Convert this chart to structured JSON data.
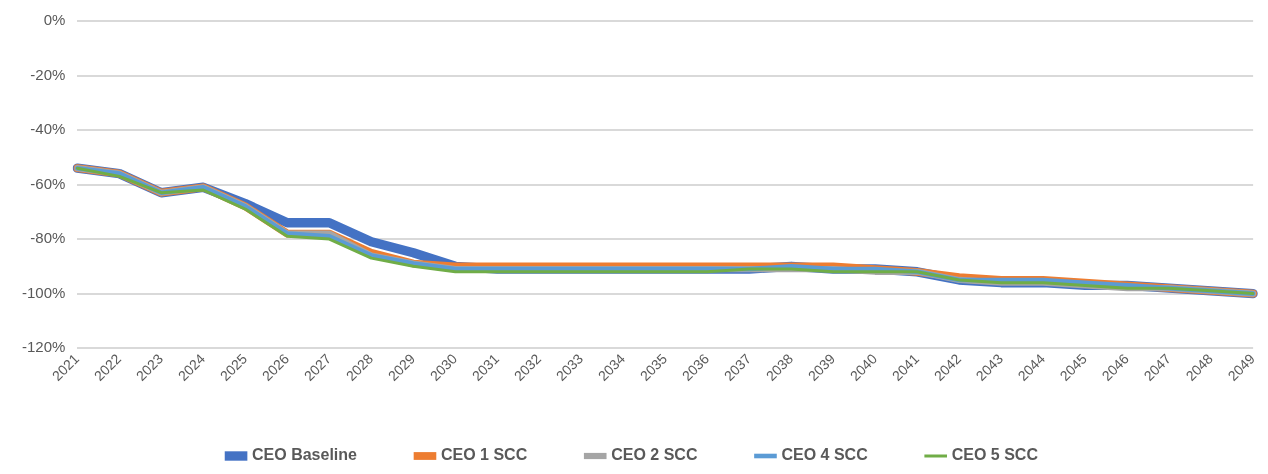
{
  "chart_data": {
    "type": "line",
    "categories": [
      "2021",
      "2022",
      "2023",
      "2024",
      "2025",
      "2026",
      "2027",
      "2028",
      "2029",
      "2030",
      "2031",
      "2032",
      "2033",
      "2034",
      "2035",
      "2036",
      "2037",
      "2038",
      "2039",
      "2040",
      "2041",
      "2042",
      "2043",
      "2044",
      "2045",
      "2046",
      "2047",
      "2048",
      "2049"
    ],
    "ylim": [
      -120,
      0
    ],
    "yticks": [
      {
        "value": -120,
        "label": "-120%"
      },
      {
        "value": -100,
        "label": "-100%"
      },
      {
        "value": -80,
        "label": "-80%"
      },
      {
        "value": -60,
        "label": "-60%"
      },
      {
        "value": -40,
        "label": "-40%"
      },
      {
        "value": -20,
        "label": "-20%"
      },
      {
        "value": 0,
        "label": "0%"
      }
    ],
    "grid": "y",
    "legend": "bottom",
    "marker": "none",
    "line_style": "solid",
    "series": [
      {
        "name": "CEO Baseline",
        "color": "#4472c4",
        "values": [
          -54,
          -56,
          -63,
          -61,
          -67,
          -74,
          -74,
          -81,
          -85,
          -90,
          -91,
          -91,
          -91,
          -91,
          -91,
          -91,
          -91,
          -90,
          -91,
          -91,
          -92,
          -95,
          -96,
          -96,
          -97,
          -97,
          -98,
          -99,
          -100
        ]
      },
      {
        "name": "CEO 1 SCC",
        "color": "#ed7d31",
        "values": [
          -54,
          -56,
          -63,
          -61,
          -68,
          -78,
          -78,
          -85,
          -89,
          -90,
          -90,
          -90,
          -90,
          -90,
          -90,
          -90,
          -90,
          -90,
          -90,
          -91,
          -92,
          -94,
          -95,
          -95,
          -96,
          -97,
          -98,
          -99,
          -100
        ]
      },
      {
        "name": "CEO 2 SCC",
        "color": "#a5a5a5",
        "values": [
          -54,
          -56,
          -63,
          -61,
          -68,
          -78,
          -78,
          -86,
          -89,
          -91,
          -91,
          -91,
          -91,
          -91,
          -91,
          -91,
          -91,
          -91,
          -91,
          -92,
          -92,
          -95,
          -96,
          -96,
          -97,
          -98,
          -98,
          -99,
          -100
        ]
      },
      {
        "name": "CEO 4 SCC",
        "color": "#5b9bd5",
        "values": [
          -54,
          -56,
          -63,
          -61,
          -68,
          -78,
          -79,
          -86,
          -89,
          -91,
          -91,
          -91,
          -91,
          -91,
          -91,
          -91,
          -91,
          -90,
          -91,
          -91,
          -92,
          -95,
          -95,
          -95,
          -96,
          -97,
          -98,
          -99,
          -100
        ]
      },
      {
        "name": "CEO 5 SCC",
        "color": "#70ad47",
        "values": [
          -54,
          -57,
          -63,
          -62,
          -69,
          -79,
          -80,
          -87,
          -90,
          -92,
          -92,
          -92,
          -92,
          -92,
          -92,
          -92,
          -91,
          -91,
          -92,
          -92,
          -92,
          -95,
          -96,
          -96,
          -97,
          -98,
          -98,
          -99,
          -100
        ]
      }
    ]
  }
}
